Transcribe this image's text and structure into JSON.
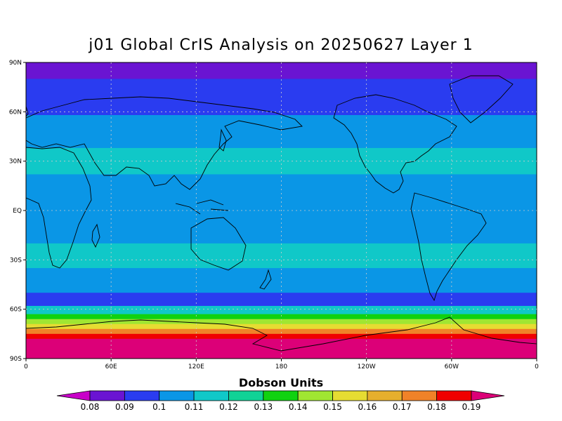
{
  "title": "j01 Global CrIS Analysis on 20250627 Layer 1",
  "colorbar": {
    "title": "Dobson Units",
    "labels": [
      "0.08",
      "0.09",
      "0.1",
      "0.11",
      "0.12",
      "0.13",
      "0.14",
      "0.15",
      "0.16",
      "0.17",
      "0.18",
      "0.19"
    ],
    "colors": [
      "#c800c8",
      "#6a14d2",
      "#2a3cf0",
      "#0a96e6",
      "#10c8c8",
      "#10d296",
      "#10d210",
      "#a0e632",
      "#e6dc32",
      "#e6af2d",
      "#f08228",
      "#f00000",
      "#dc0078"
    ]
  },
  "map": {
    "lat_labels": [
      "90N",
      "60N",
      "30N",
      "EQ",
      "30S",
      "60S",
      "90S"
    ],
    "lon_labels": [
      "0",
      "60E",
      "120E",
      "180",
      "120W",
      "60W",
      "0"
    ],
    "bands": [
      {
        "lat_top": 90,
        "lat_bot": 80,
        "color": "#6a14d2"
      },
      {
        "lat_top": 80,
        "lat_bot": 58,
        "color": "#2a3cf0"
      },
      {
        "lat_top": 58,
        "lat_bot": 38,
        "color": "#0a96e6"
      },
      {
        "lat_top": 38,
        "lat_bot": 22,
        "color": "#10c8c8"
      },
      {
        "lat_top": 22,
        "lat_bot": -20,
        "color": "#0a96e6"
      },
      {
        "lat_top": -20,
        "lat_bot": -35,
        "color": "#10c8c8"
      },
      {
        "lat_top": -35,
        "lat_bot": -50,
        "color": "#0a96e6"
      },
      {
        "lat_top": -50,
        "lat_bot": -58,
        "color": "#2a3cf0"
      },
      {
        "lat_top": -58,
        "lat_bot": -63,
        "color": "#10c8c8"
      },
      {
        "lat_top": -63,
        "lat_bot": -66,
        "color": "#10d210"
      },
      {
        "lat_top": -66,
        "lat_bot": -69,
        "color": "#a0e632"
      },
      {
        "lat_top": -69,
        "lat_bot": -72,
        "color": "#e6dc32"
      },
      {
        "lat_top": -72,
        "lat_bot": -75,
        "color": "#f08228"
      },
      {
        "lat_top": -75,
        "lat_bot": -78,
        "color": "#f00000"
      },
      {
        "lat_top": -78,
        "lat_bot": -90,
        "color": "#dc0078"
      }
    ]
  }
}
